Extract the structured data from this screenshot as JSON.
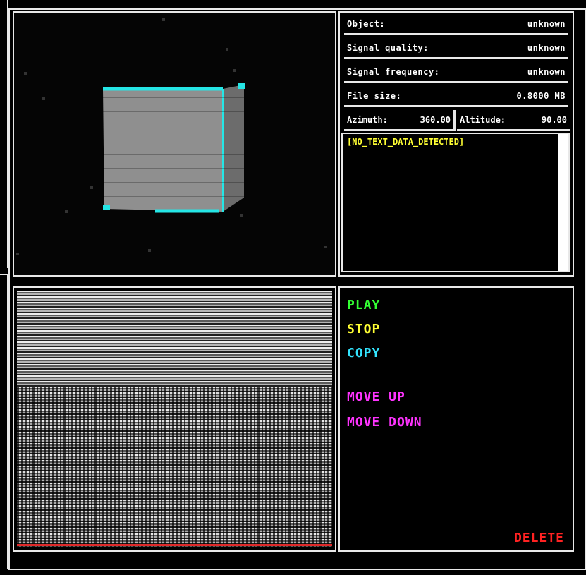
{
  "info": {
    "object_label": "Object:",
    "object_value": "unknown",
    "quality_label": "Signal quality:",
    "quality_value": "unknown",
    "frequency_label": "Signal frequency:",
    "frequency_value": "unknown",
    "filesize_label": "File size:",
    "filesize_value": "0.8000 MB",
    "azimuth_label": "Azimuth:",
    "azimuth_value": "360.00",
    "altitude_label": "Altitude:",
    "altitude_value": "90.00"
  },
  "textbox": {
    "message": "[NO_TEXT_DATA_DETECTED]"
  },
  "controls": {
    "play": "PLAY",
    "stop": "STOP",
    "copy": "COPY",
    "move_up": "MOVE UP",
    "move_down": "MOVE DOWN",
    "delete": "DELETE"
  },
  "colors": {
    "play": "#33ff33",
    "stop": "#ffff33",
    "copy": "#33e5ff",
    "move": "#ff33ff",
    "delete": "#ff2222",
    "cube_edge": "#25e6e6",
    "cube_face": "#8c8c8c"
  }
}
